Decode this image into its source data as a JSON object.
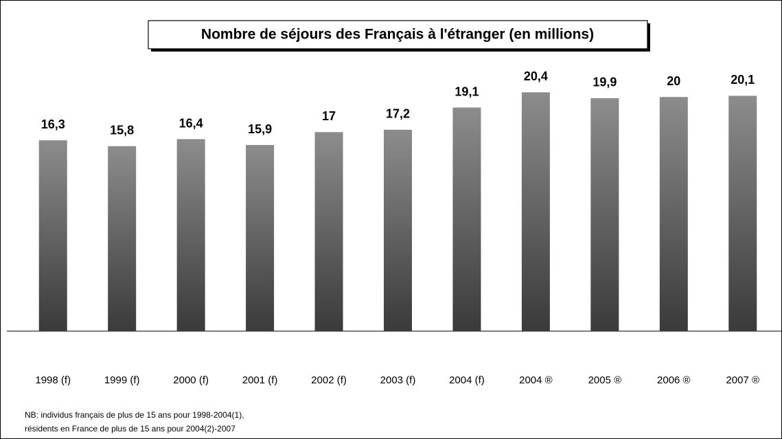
{
  "chart_data": {
    "type": "bar",
    "title": "Nombre de séjours des Français à l'étranger (en millions)",
    "categories": [
      "1998 (f)",
      "1999 (f)",
      "2000 (f)",
      "2001 (f)",
      "2002 (f)",
      "2003 (f)",
      "2004 (f)",
      "2004 ®",
      "2005 ®",
      "2006 ®",
      "2007 ®"
    ],
    "values": [
      16.3,
      15.8,
      16.4,
      15.9,
      17,
      17.2,
      19.1,
      20.4,
      19.9,
      20,
      20.1
    ],
    "value_labels": [
      "16,3",
      "15,8",
      "16,4",
      "15,9",
      "17",
      "17,2",
      "19,1",
      "20,4",
      "19,9",
      "20",
      "20,1"
    ],
    "gradient": [
      "#8c8c8c",
      "#3a3a3a"
    ],
    "ylim": [
      0,
      24
    ],
    "note": [
      "NB: individus français de plus de 15 ans pour 1998-2004(1),",
      "résidents en France de plus de 15 ans pour 2004(2)-2007"
    ]
  }
}
